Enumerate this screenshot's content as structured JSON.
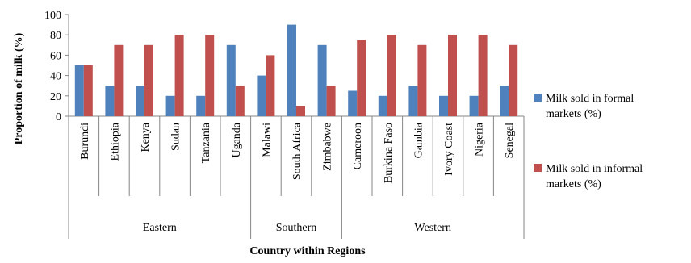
{
  "chart_data": {
    "type": "bar",
    "ylabel": "Proportion of milk (%)",
    "xlabel": "Country within Regions",
    "ylim": [
      0,
      100
    ],
    "yticks": [
      0,
      20,
      40,
      60,
      80,
      100
    ],
    "grid": false,
    "legend_position": "right",
    "categories": [
      "Burundi",
      "Ethiopia",
      "Kenya",
      "Sudan",
      "Tanzania",
      "Uganda",
      "Malawi",
      "South Africa",
      "Zimbabwe",
      "Cameroon",
      "Burkina Faso",
      "Gambia",
      "Ivory Coast",
      "Nigeria",
      "Senegal"
    ],
    "groups": [
      {
        "label": "Eastern",
        "count": 6
      },
      {
        "label": "Southern",
        "count": 3
      },
      {
        "label": "Western",
        "count": 6
      }
    ],
    "series": [
      {
        "name": "Milk sold in formal markets (%)",
        "color": "#4F81BD",
        "values": [
          50,
          30,
          30,
          20,
          20,
          70,
          40,
          90,
          70,
          25,
          20,
          30,
          20,
          20,
          30
        ]
      },
      {
        "name": "Milk sold in informal markets (%)",
        "color": "#C0504D",
        "values": [
          50,
          70,
          70,
          80,
          80,
          30,
          60,
          10,
          30,
          75,
          80,
          70,
          80,
          80,
          70
        ]
      }
    ]
  }
}
